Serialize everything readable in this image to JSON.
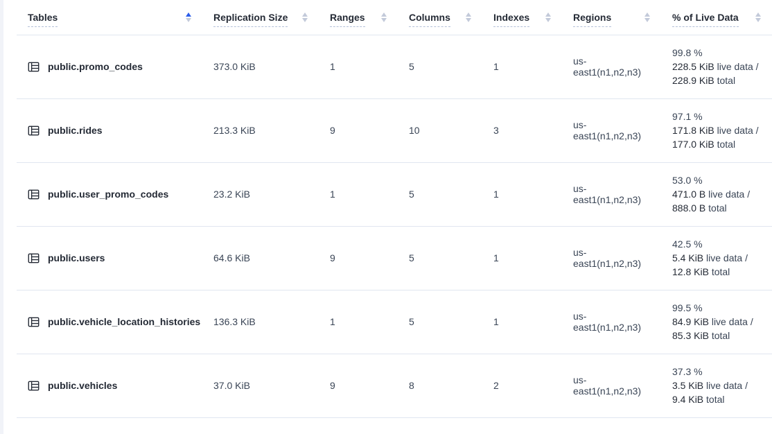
{
  "colors": {
    "accent_blue": "#2b5dea",
    "header_text": "#242a35",
    "body_text": "#394455",
    "row_border": "#e0e6f0",
    "underline": "#b3c0d8",
    "sort_inactive": "#c3cada"
  },
  "table": {
    "columns": [
      {
        "id": "tables",
        "label": "Tables",
        "sort": "asc"
      },
      {
        "id": "replication-size",
        "label": "Replication Size",
        "sort": "none"
      },
      {
        "id": "ranges",
        "label": "Ranges",
        "sort": "none"
      },
      {
        "id": "columns",
        "label": "Columns",
        "sort": "none"
      },
      {
        "id": "indexes",
        "label": "Indexes",
        "sort": "none"
      },
      {
        "id": "regions",
        "label": "Regions",
        "sort": "none"
      },
      {
        "id": "live-data",
        "label": "% of Live Data",
        "sort": "none"
      }
    ],
    "rows": [
      {
        "name": "public.promo_codes",
        "replication_size": "373.0 KiB",
        "ranges": "1",
        "columns": "5",
        "indexes": "1",
        "regions": "us-east1(n1,n2,n3)",
        "live_percent": "99.8 %",
        "live_size": "228.5 KiB",
        "live_label": "live data /",
        "total_size": "228.9 KiB",
        "total_label": "total"
      },
      {
        "name": "public.rides",
        "replication_size": "213.3 KiB",
        "ranges": "9",
        "columns": "10",
        "indexes": "3",
        "regions": "us-east1(n1,n2,n3)",
        "live_percent": "97.1 %",
        "live_size": "171.8 KiB",
        "live_label": "live data /",
        "total_size": "177.0 KiB",
        "total_label": "total"
      },
      {
        "name": "public.user_promo_codes",
        "replication_size": "23.2 KiB",
        "ranges": "1",
        "columns": "5",
        "indexes": "1",
        "regions": "us-east1(n1,n2,n3)",
        "live_percent": "53.0 %",
        "live_size": "471.0 B",
        "live_label": "live data /",
        "total_size": "888.0 B",
        "total_label": "total"
      },
      {
        "name": "public.users",
        "replication_size": "64.6 KiB",
        "ranges": "9",
        "columns": "5",
        "indexes": "1",
        "regions": "us-east1(n1,n2,n3)",
        "live_percent": "42.5 %",
        "live_size": "5.4 KiB",
        "live_label": "live data /",
        "total_size": "12.8 KiB",
        "total_label": "total"
      },
      {
        "name": "public.vehicle_location_histories",
        "replication_size": "136.3 KiB",
        "ranges": "1",
        "columns": "5",
        "indexes": "1",
        "regions": "us-east1(n1,n2,n3)",
        "live_percent": "99.5 %",
        "live_size": "84.9 KiB",
        "live_label": "live data /",
        "total_size": "85.3 KiB",
        "total_label": "total"
      },
      {
        "name": "public.vehicles",
        "replication_size": "37.0 KiB",
        "ranges": "9",
        "columns": "8",
        "indexes": "2",
        "regions": "us-east1(n1,n2,n3)",
        "live_percent": "37.3 %",
        "live_size": "3.5 KiB",
        "live_label": "live data /",
        "total_size": "9.4 KiB",
        "total_label": "total"
      }
    ]
  }
}
